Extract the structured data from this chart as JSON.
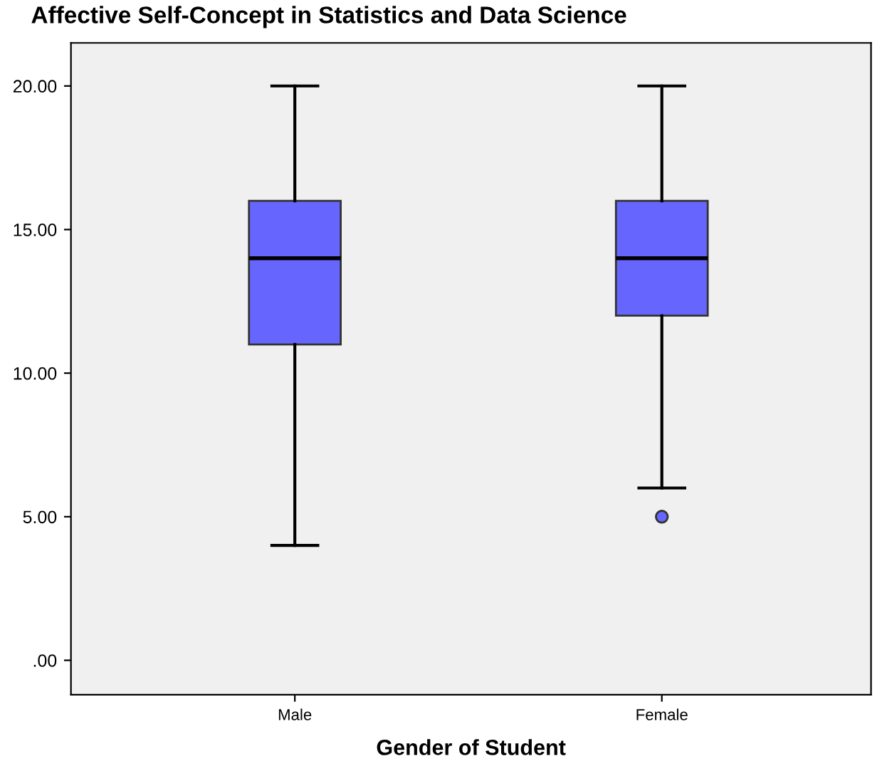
{
  "chart_data": {
    "type": "box",
    "title": "Affective Self-Concept in Statistics and Data Science",
    "xlabel": "Gender of Student",
    "categories": [
      "Male",
      "Female"
    ],
    "series": [
      {
        "color": "#6666ff",
        "boxes": [
          {
            "low": 4,
            "q1": 11,
            "median": 14,
            "q3": 16,
            "high": 20
          },
          {
            "low": 6,
            "q1": 12,
            "median": 14,
            "q3": 16,
            "high": 20,
            "outliers": [
              5
            ]
          }
        ]
      }
    ],
    "ylim": [
      -1.2,
      21.5
    ],
    "yticks": [
      {
        "value": 0,
        "label": ".00"
      },
      {
        "value": 5,
        "label": "5.00"
      },
      {
        "value": 10,
        "label": "10.00"
      },
      {
        "value": 15,
        "label": "15.00"
      },
      {
        "value": 20,
        "label": "20.00"
      }
    ],
    "grid": false,
    "legend": false
  }
}
